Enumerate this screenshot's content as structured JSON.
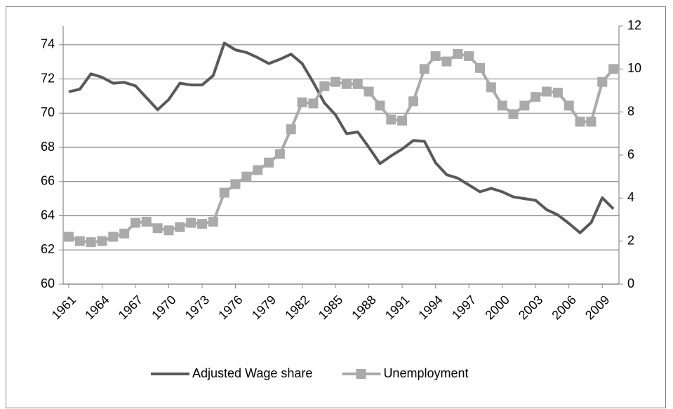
{
  "chart_data": {
    "type": "line",
    "x": [
      1961,
      1962,
      1963,
      1964,
      1965,
      1966,
      1967,
      1968,
      1969,
      1970,
      1971,
      1972,
      1973,
      1974,
      1975,
      1976,
      1977,
      1978,
      1979,
      1980,
      1981,
      1982,
      1983,
      1984,
      1985,
      1986,
      1987,
      1988,
      1989,
      1990,
      1991,
      1992,
      1993,
      1994,
      1995,
      1996,
      1997,
      1998,
      1999,
      2000,
      2001,
      2002,
      2003,
      2004,
      2005,
      2006,
      2007,
      2008,
      2009,
      2010
    ],
    "xlim": [
      1960.5,
      2010.5
    ],
    "xticks": [
      1961,
      1964,
      1967,
      1970,
      1973,
      1976,
      1979,
      1982,
      1985,
      1988,
      1991,
      1994,
      1997,
      2000,
      2003,
      2006,
      2009
    ],
    "ylim": [
      60,
      75.1
    ],
    "yticks": [
      60,
      62,
      64,
      66,
      68,
      70,
      72,
      74
    ],
    "y2lim": [
      0,
      12
    ],
    "y2ticks": [
      0,
      2,
      4,
      6,
      8,
      10,
      12
    ],
    "grid": true,
    "legend": "bottom",
    "series": [
      {
        "name": "Adjusted Wage share",
        "color": "#595959",
        "axis": "y",
        "marker": "none",
        "values": [
          71.25,
          71.4,
          72.3,
          72.1,
          71.75,
          71.8,
          71.6,
          70.9,
          70.2,
          70.8,
          71.75,
          71.65,
          71.65,
          72.2,
          74.1,
          73.7,
          73.55,
          73.25,
          72.9,
          73.15,
          73.45,
          72.9,
          71.8,
          70.6,
          69.9,
          68.8,
          68.9,
          68.0,
          67.05,
          67.5,
          67.9,
          68.4,
          68.35,
          67.1,
          66.4,
          66.2,
          65.8,
          65.4,
          65.6,
          65.4,
          65.1,
          65.0,
          64.9,
          64.35,
          64.05,
          63.55,
          63.0,
          63.6,
          65.05,
          64.4
        ]
      },
      {
        "name": "Unemployment",
        "color": "#aaaaaa",
        "axis": "y2",
        "marker": "square",
        "values": [
          2.2,
          2.0,
          1.95,
          2.0,
          2.2,
          2.35,
          2.85,
          2.9,
          2.6,
          2.5,
          2.65,
          2.85,
          2.8,
          2.9,
          4.25,
          4.65,
          5.0,
          5.3,
          5.65,
          6.05,
          7.2,
          8.45,
          8.4,
          9.2,
          9.4,
          9.3,
          9.3,
          8.95,
          8.3,
          7.65,
          7.6,
          8.5,
          10.0,
          10.6,
          10.35,
          10.7,
          10.6,
          10.05,
          9.15,
          8.3,
          7.9,
          8.3,
          8.7,
          8.95,
          8.9,
          8.3,
          7.55,
          7.55,
          9.4,
          10.0
        ]
      }
    ]
  }
}
